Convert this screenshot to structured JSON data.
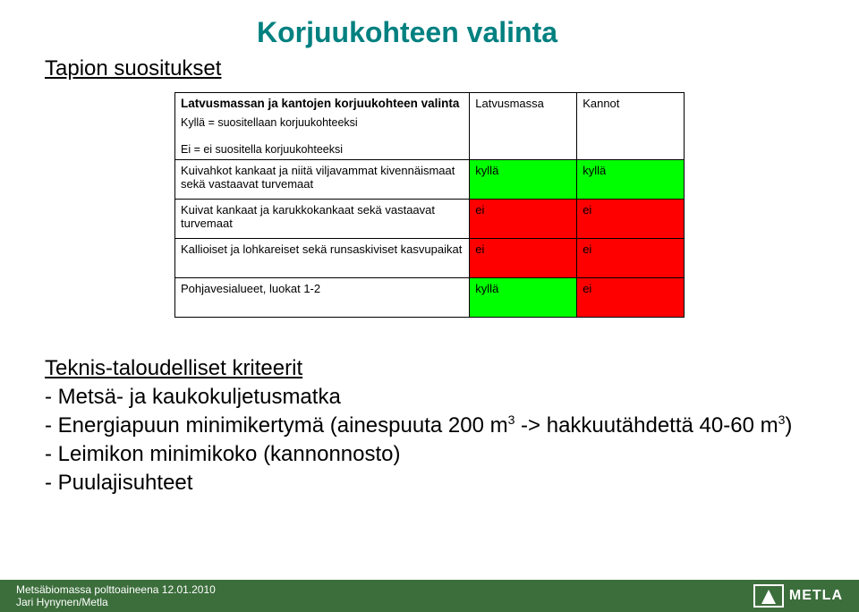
{
  "title": "Korjuukohteen valinta",
  "subtitle": "Tapion suositukset",
  "table": {
    "header": {
      "title": "Latvusmassan ja kantojen korjuukohteen valinta",
      "line1": "Kyllä = suositellaan korjuukohteeksi",
      "line2": "Ei = ei suositella korjuukohteeksi",
      "col1": "Latvusmassa",
      "col2": "Kannot"
    },
    "rows": [
      {
        "desc": "Kuivahkot kankaat ja niitä viljavammat kivennäismaat sekä vastaavat turvemaat",
        "v1": "kyllä",
        "c1": "#00ff00",
        "v2": "kyllä",
        "c2": "#00ff00"
      },
      {
        "desc": "Kuivat kankaat ja karukkokankaat sekä vastaavat turvemaat",
        "v1": "ei",
        "c1": "#ff0000",
        "v2": "ei",
        "c2": "#ff0000"
      },
      {
        "desc": "Kallioiset ja lohkareiset sekä runsaskiviset kasvupaikat",
        "v1": "ei",
        "c1": "#ff0000",
        "v2": "ei",
        "c2": "#ff0000"
      },
      {
        "desc": "Pohjavesialueet, luokat 1-2",
        "v1": "kyllä",
        "c1": "#00ff00",
        "v2": "ei",
        "c2": "#ff0000"
      }
    ]
  },
  "criteria": {
    "title": "Teknis-taloudelliset kriteerit",
    "items": {
      "i1": "- Metsä- ja kaukokuljetusmatka",
      "i2a": "- Energiapuun minimikertymä (ainespuuta 200 m",
      "i2b": " -> hakkuutähdettä 40-60 m",
      "i2c": ")",
      "i3": "- Leimikon minimikoko (kannonnosto)",
      "i4": "- Puulajisuhteet"
    },
    "sup": "3"
  },
  "footer": {
    "line1": "Metsäbiomassa polttoaineena 12.01.2010",
    "line2": "Jari Hynynen/Metla",
    "logo": "METLA"
  },
  "colors": {
    "title": "#008080",
    "footer_bg": "#3c6e3c",
    "green": "#00ff00",
    "red": "#ff0000"
  }
}
